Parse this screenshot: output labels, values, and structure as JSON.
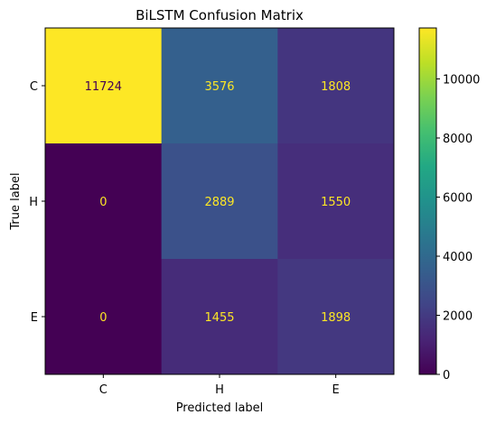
{
  "chart_data": {
    "type": "heatmap",
    "title": "BiLSTM Confusion Matrix",
    "xlabel": "Predicted label",
    "ylabel": "True label",
    "x_categories": [
      "C",
      "H",
      "E"
    ],
    "y_categories": [
      "C",
      "H",
      "E"
    ],
    "values": [
      [
        11724,
        3576,
        1808
      ],
      [
        0,
        2889,
        1550
      ],
      [
        0,
        1455,
        1898
      ]
    ],
    "colormap": "viridis",
    "vmin": 0,
    "vmax": 11724,
    "colorbar_ticks": [
      0,
      2000,
      4000,
      6000,
      8000,
      10000
    ],
    "grid": false
  }
}
